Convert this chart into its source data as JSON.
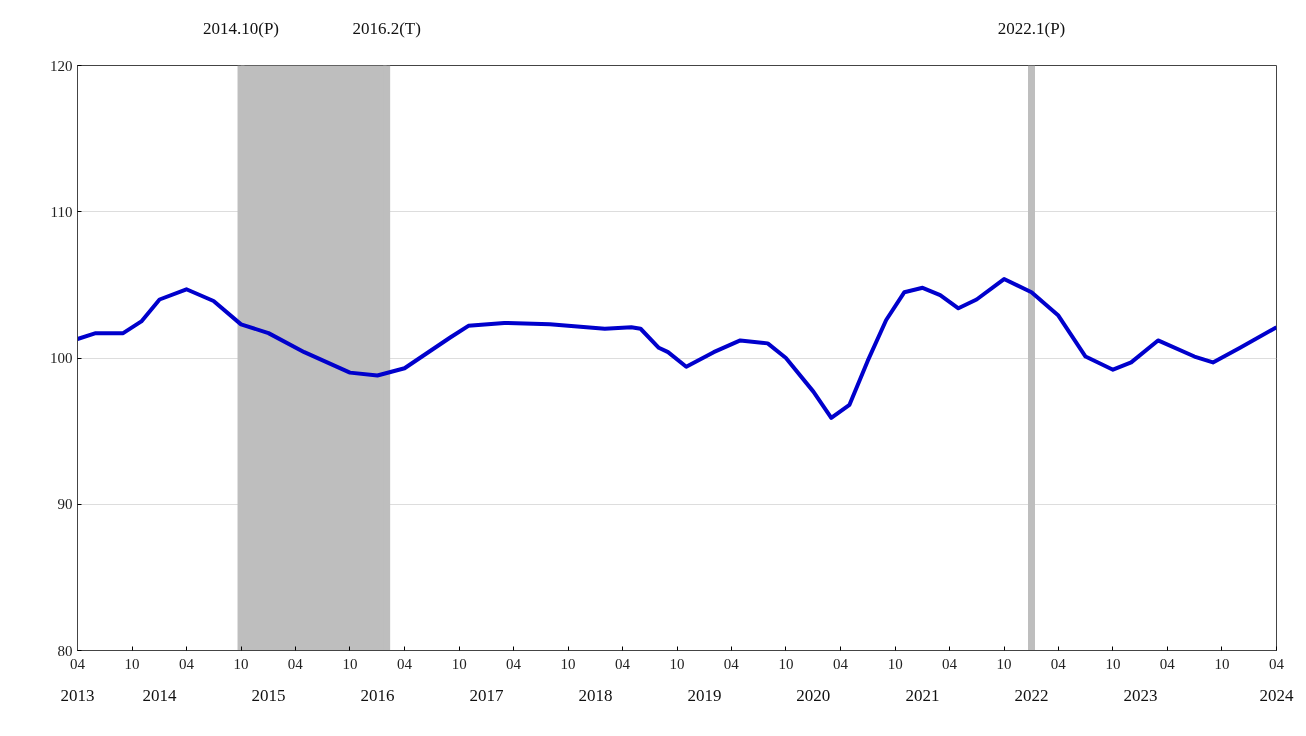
{
  "chart_data": {
    "type": "line",
    "x": [
      "2013-04",
      "2013-06",
      "2013-09",
      "2013-11",
      "2014-01",
      "2014-04",
      "2014-07",
      "2014-10",
      "2015-01",
      "2015-05",
      "2015-10",
      "2016-01",
      "2016-04",
      "2016-09",
      "2016-11",
      "2017-03",
      "2017-08",
      "2018-02",
      "2018-05",
      "2018-06",
      "2018-08",
      "2018-09",
      "2018-11",
      "2019-02",
      "2019-05",
      "2019-08",
      "2019-10",
      "2020-01",
      "2020-03",
      "2020-05",
      "2020-07",
      "2020-09",
      "2020-11",
      "2021-01",
      "2021-03",
      "2021-05",
      "2021-07",
      "2021-10",
      "2022-01",
      "2022-04",
      "2022-07",
      "2022-10",
      "2022-12",
      "2023-03",
      "2023-07",
      "2023-09",
      "2023-12",
      "2024-04"
    ],
    "series": [
      {
        "color": "#0000cc",
        "values": [
          101.3,
          101.7,
          101.7,
          102.5,
          104.0,
          104.7,
          103.9,
          102.3,
          101.7,
          100.4,
          99.0,
          98.8,
          99.3,
          101.4,
          102.2,
          102.4,
          102.3,
          102.0,
          102.1,
          102.0,
          100.7,
          100.4,
          99.4,
          100.4,
          101.2,
          101.0,
          100.0,
          97.7,
          95.9,
          96.8,
          99.8,
          102.6,
          104.5,
          104.8,
          104.3,
          103.4,
          104.0,
          105.4,
          104.5,
          102.9,
          100.1,
          99.2,
          99.7,
          101.2,
          100.1,
          99.7,
          100.7,
          102.1
        ]
      }
    ],
    "xlim": [
      "2013-04",
      "2024-04"
    ],
    "xticks": [
      {
        "value": "2013-04",
        "label": "04"
      },
      {
        "value": "2013-10",
        "label": "10"
      },
      {
        "value": "2014-04",
        "label": "04"
      },
      {
        "value": "2014-10",
        "label": "10"
      },
      {
        "value": "2015-04",
        "label": "04"
      },
      {
        "value": "2015-10",
        "label": "10"
      },
      {
        "value": "2016-04",
        "label": "04"
      },
      {
        "value": "2016-10",
        "label": "10"
      },
      {
        "value": "2017-04",
        "label": "04"
      },
      {
        "value": "2017-10",
        "label": "10"
      },
      {
        "value": "2018-04",
        "label": "04"
      },
      {
        "value": "2018-10",
        "label": "10"
      },
      {
        "value": "2019-04",
        "label": "04"
      },
      {
        "value": "2019-10",
        "label": "10"
      },
      {
        "value": "2020-04",
        "label": "04"
      },
      {
        "value": "2020-10",
        "label": "10"
      },
      {
        "value": "2021-04",
        "label": "04"
      },
      {
        "value": "2021-10",
        "label": "10"
      },
      {
        "value": "2022-04",
        "label": "04"
      },
      {
        "value": "2022-10",
        "label": "10"
      },
      {
        "value": "2023-04",
        "label": "04"
      },
      {
        "value": "2023-10",
        "label": "10"
      },
      {
        "value": "2024-04",
        "label": "04"
      }
    ],
    "x2lim": [
      "2013-04",
      "2024-04"
    ],
    "x2ticks": [
      {
        "value": "2013-04",
        "label": "2013"
      },
      {
        "value": "2014-01",
        "label": "2014"
      },
      {
        "value": "2015-01",
        "label": "2015"
      },
      {
        "value": "2016-01",
        "label": "2016"
      },
      {
        "value": "2017-01",
        "label": "2017"
      },
      {
        "value": "2018-01",
        "label": "2018"
      },
      {
        "value": "2019-01",
        "label": "2019"
      },
      {
        "value": "2020-01",
        "label": "2020"
      },
      {
        "value": "2021-01",
        "label": "2021"
      },
      {
        "value": "2022-01",
        "label": "2022"
      },
      {
        "value": "2023-01",
        "label": "2023"
      },
      {
        "value": "2024-04",
        "label": "2024"
      }
    ],
    "ylim": [
      80,
      120
    ],
    "yticks": [
      80,
      90,
      100,
      110,
      120
    ],
    "grid": "y",
    "bands": [
      {
        "axis": "x",
        "from": "2014-10",
        "to": "2016-02",
        "color": "#bebebe"
      }
    ],
    "ref_lines": [
      {
        "axis": "x",
        "value": "2014-10",
        "label": "2014.10(P)",
        "color": "#bebebe"
      },
      {
        "axis": "x",
        "value": "2016-02",
        "label": "2016.2(T)",
        "color": "#bebebe"
      },
      {
        "axis": "x",
        "value": "2022-01",
        "label": "2022.1(P)",
        "color": "#bebebe"
      }
    ]
  }
}
